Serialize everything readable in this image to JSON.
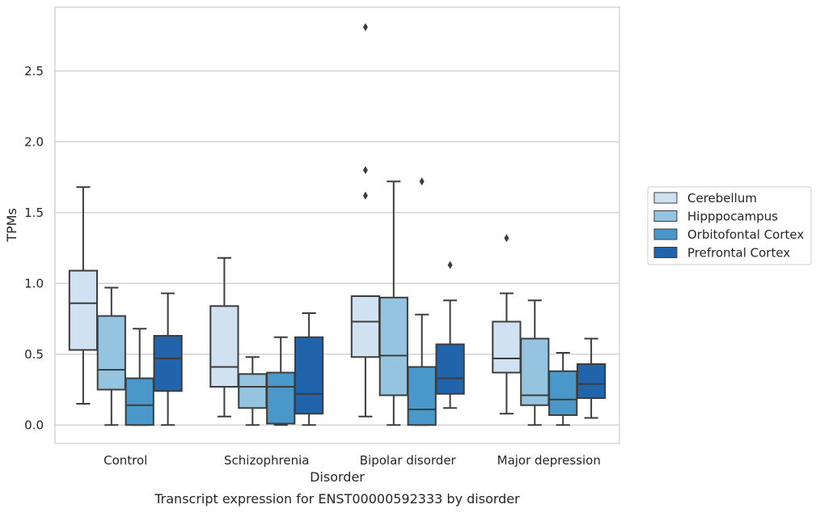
{
  "chart_data": {
    "type": "box",
    "xlabel": "Disorder",
    "ylabel": "TPMs",
    "caption": "Transcript expression for ENST00000592333 by disorder",
    "ylim": [
      -0.13,
      2.95
    ],
    "yticks": [
      0.0,
      0.5,
      1.0,
      1.5,
      2.0,
      2.5
    ],
    "ytick_labels": [
      "0.0",
      "0.5",
      "1.0",
      "1.5",
      "2.0",
      "2.5"
    ],
    "grid": "horizontal",
    "legend_position": "right",
    "categories": [
      "Control",
      "Schizophrenia",
      "Bipolar disorder",
      "Major depression"
    ],
    "series": [
      {
        "name": "Cerebellum",
        "color": "#d0e1f2",
        "boxes": [
          {
            "whislo": 0.15,
            "q1": 0.53,
            "med": 0.86,
            "q3": 1.09,
            "whishi": 1.68,
            "fliers": []
          },
          {
            "whislo": 0.06,
            "q1": 0.27,
            "med": 0.41,
            "q3": 0.84,
            "whishi": 1.18,
            "fliers": []
          },
          {
            "whislo": 0.06,
            "q1": 0.48,
            "med": 0.73,
            "q3": 0.91,
            "whishi": 0.91,
            "fliers": [
              2.81,
              1.8,
              1.62
            ]
          },
          {
            "whislo": 0.08,
            "q1": 0.37,
            "med": 0.47,
            "q3": 0.73,
            "whishi": 0.93,
            "fliers": [
              1.32
            ]
          }
        ]
      },
      {
        "name": "Hipppocampus",
        "color": "#94c4df",
        "boxes": [
          {
            "whislo": 0.0,
            "q1": 0.25,
            "med": 0.39,
            "q3": 0.77,
            "whishi": 0.97,
            "fliers": []
          },
          {
            "whislo": 0.0,
            "q1": 0.12,
            "med": 0.27,
            "q3": 0.36,
            "whishi": 0.48,
            "fliers": []
          },
          {
            "whislo": 0.0,
            "q1": 0.21,
            "med": 0.49,
            "q3": 0.9,
            "whishi": 1.72,
            "fliers": []
          },
          {
            "whislo": 0.0,
            "q1": 0.14,
            "med": 0.21,
            "q3": 0.61,
            "whishi": 0.88,
            "fliers": []
          }
        ]
      },
      {
        "name": "Orbitofontal Cortex",
        "color": "#4a98c9",
        "boxes": [
          {
            "whislo": 0.0,
            "q1": 0.0,
            "med": 0.14,
            "q3": 0.33,
            "whishi": 0.68,
            "fliers": []
          },
          {
            "whislo": 0.0,
            "q1": 0.01,
            "med": 0.27,
            "q3": 0.37,
            "whishi": 0.62,
            "fliers": []
          },
          {
            "whislo": 0.0,
            "q1": 0.0,
            "med": 0.11,
            "q3": 0.41,
            "whishi": 0.78,
            "fliers": [
              1.72
            ]
          },
          {
            "whislo": 0.0,
            "q1": 0.07,
            "med": 0.18,
            "q3": 0.38,
            "whishi": 0.51,
            "fliers": []
          }
        ]
      },
      {
        "name": "Prefrontal Cortex",
        "color": "#2164ab",
        "boxes": [
          {
            "whislo": 0.0,
            "q1": 0.24,
            "med": 0.47,
            "q3": 0.63,
            "whishi": 0.93,
            "fliers": []
          },
          {
            "whislo": 0.0,
            "q1": 0.08,
            "med": 0.22,
            "q3": 0.62,
            "whishi": 0.79,
            "fliers": []
          },
          {
            "whislo": 0.12,
            "q1": 0.22,
            "med": 0.33,
            "q3": 0.57,
            "whishi": 0.88,
            "fliers": [
              1.13
            ]
          },
          {
            "whislo": 0.05,
            "q1": 0.19,
            "med": 0.29,
            "q3": 0.43,
            "whishi": 0.61,
            "fliers": []
          }
        ]
      }
    ],
    "colors": {
      "edge": "#3d3d3d",
      "grid": "#cccccc",
      "frame": "#cccccc",
      "background": "#ffffff"
    }
  }
}
